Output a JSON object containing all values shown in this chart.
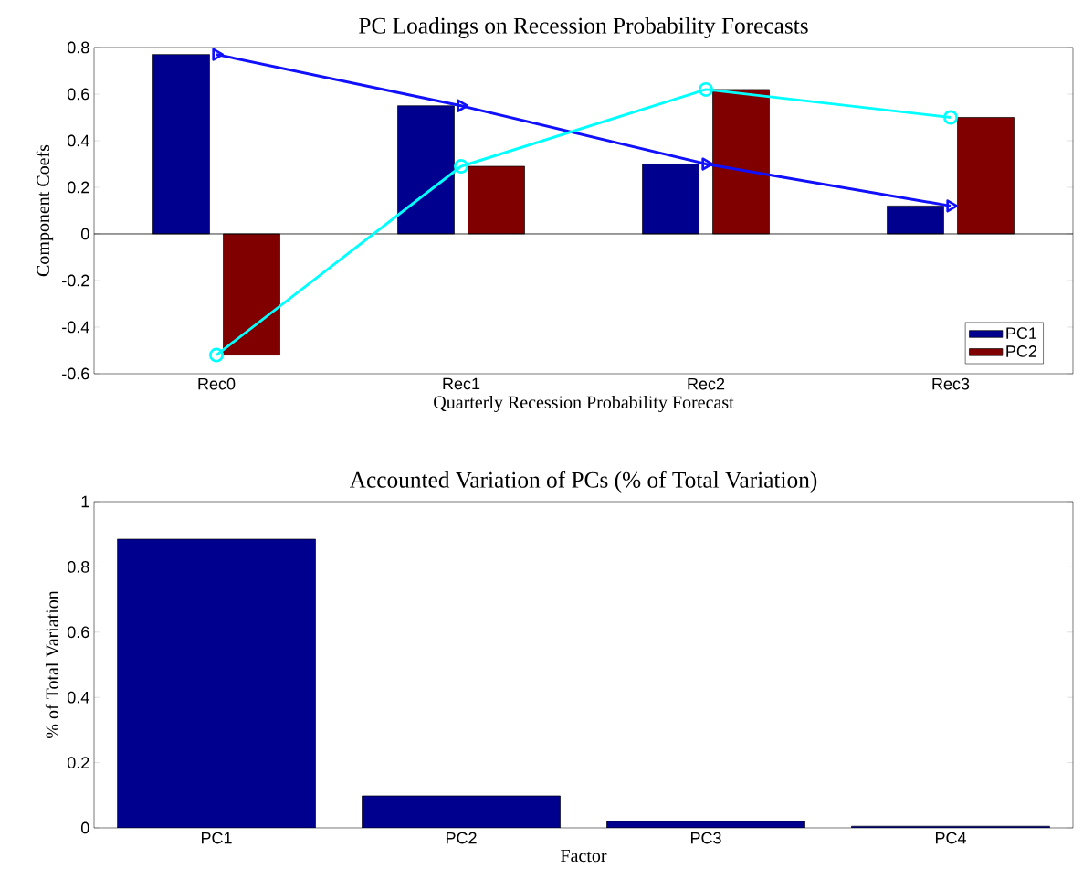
{
  "chart_data": [
    {
      "type": "bar",
      "title": "PC Loadings on Recession Probability Forecasts",
      "xlabel": "Quarterly Recession Probability Forecast",
      "ylabel": "Component Coefs",
      "categories": [
        "Rec0",
        "Rec1",
        "Rec2",
        "Rec3"
      ],
      "series": [
        {
          "name": "PC1",
          "color": "#00008f",
          "values": [
            0.77,
            0.55,
            0.3,
            0.12
          ]
        },
        {
          "name": "PC2",
          "color": "#800000",
          "values": [
            -0.52,
            0.29,
            0.62,
            0.5
          ]
        },
        {
          "type": "line",
          "color": "#1010ff",
          "marker": "triangle",
          "values": [
            0.77,
            0.55,
            0.3,
            0.12
          ]
        },
        {
          "type": "line",
          "color": "#00ffff",
          "marker": "circle",
          "values": [
            -0.52,
            0.29,
            0.62,
            0.5
          ]
        }
      ],
      "ylim": [
        -0.6,
        0.8
      ],
      "yticks": [
        -0.6,
        -0.4,
        -0.2,
        0,
        0.2,
        0.4,
        0.6,
        0.8
      ],
      "ref_lines": [
        {
          "axis": "y",
          "value": 0
        }
      ],
      "legend": "bottom right"
    },
    {
      "type": "bar",
      "title": "Accounted Variation of PCs (% of Total Variation)",
      "xlabel": "Factor",
      "ylabel": "% of Total Variation",
      "categories": [
        "PC1",
        "PC2",
        "PC3",
        "PC4"
      ],
      "series": [
        {
          "color": "#00008f",
          "values": [
            0.885,
            0.098,
            0.02,
            0.005
          ]
        }
      ],
      "ylim": [
        0,
        1
      ],
      "yticks": [
        0,
        0.2,
        0.4,
        0.6,
        0.8,
        1
      ]
    }
  ]
}
